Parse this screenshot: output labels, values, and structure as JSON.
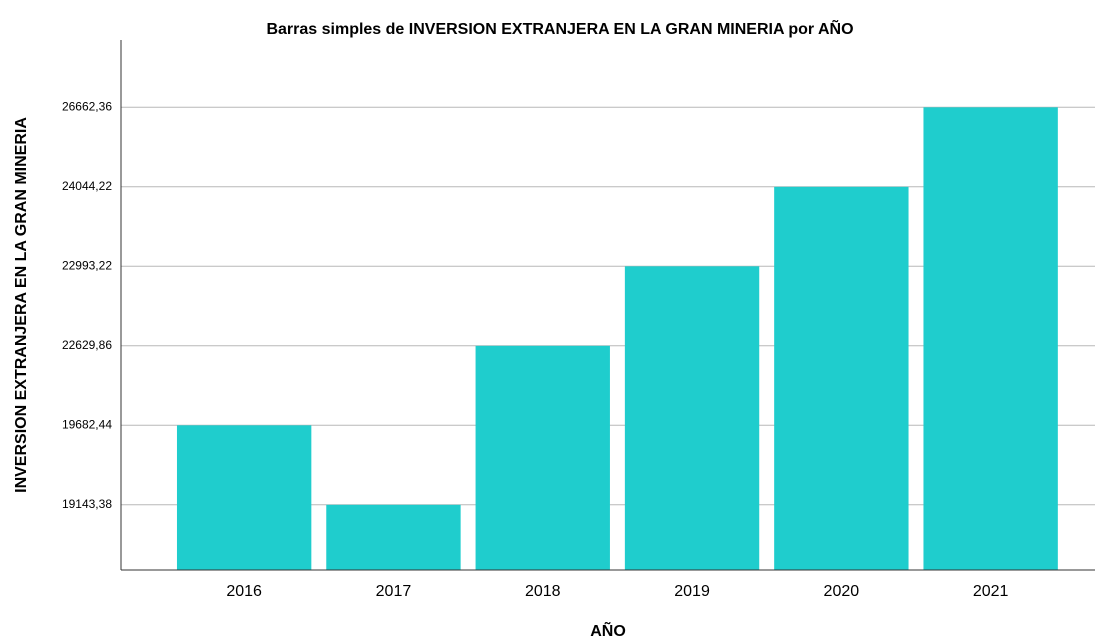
{
  "chart_data": {
    "type": "bar",
    "title": "Barras simples de INVERSION EXTRANJERA EN LA GRAN MINERIA por AÑO",
    "xlabel": "AÑO",
    "ylabel": "INVERSION EXTRANJERA EN LA GRAN MINERIA",
    "categories": [
      "2016",
      "2017",
      "2018",
      "2019",
      "2020",
      "2021"
    ],
    "values": [
      19682.44,
      19143.38,
      22629.86,
      22993.22,
      24044.22,
      26662.36
    ],
    "color": "#1fcdcd",
    "yscale": "ordinal",
    "yticks": [
      {
        "value": 19143.38,
        "label": "19143,38"
      },
      {
        "value": 19682.44,
        "label": "19682,44"
      },
      {
        "value": 22629.86,
        "label": "22629,86"
      },
      {
        "value": 22993.22,
        "label": "22993,22"
      },
      {
        "value": 24044.22,
        "label": "24044,22"
      },
      {
        "value": 26662.36,
        "label": "26662,36"
      }
    ],
    "grid": true
  }
}
